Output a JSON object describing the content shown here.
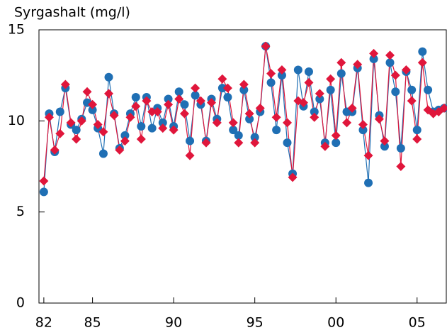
{
  "chart_data": {
    "type": "line",
    "title": "Syrgashalt (mg/l)",
    "x": [
      1982,
      1982.33,
      1982.67,
      1983,
      1983.33,
      1983.67,
      1984,
      1984.33,
      1984.67,
      1985,
      1985.33,
      1985.67,
      1986,
      1986.33,
      1986.67,
      1987,
      1987.33,
      1987.67,
      1988,
      1988.33,
      1988.67,
      1989,
      1989.33,
      1989.67,
      1990,
      1990.33,
      1990.67,
      1991,
      1991.33,
      1991.67,
      1992,
      1992.33,
      1992.67,
      1993,
      1993.33,
      1993.67,
      1994,
      1994.33,
      1994.67,
      1995,
      1995.33,
      1995.67,
      1996,
      1996.33,
      1996.67,
      1997,
      1997.33,
      1997.67,
      1998,
      1998.33,
      1998.67,
      1999,
      1999.33,
      1999.67,
      2000,
      2000.33,
      2000.67,
      2001,
      2001.33,
      2001.67,
      2002,
      2002.33,
      2002.67,
      2003,
      2003.33,
      2003.67,
      2004,
      2004.33,
      2004.67,
      2005,
      2005.33,
      2005.67,
      2006,
      2006.33,
      2006.67
    ],
    "series": [
      {
        "color": "#1f6fb4",
        "marker": "circle",
        "values": [
          6.1,
          10.4,
          8.3,
          10.5,
          11.8,
          9.8,
          9.5,
          10.1,
          11.0,
          10.6,
          9.6,
          8.2,
          12.4,
          10.4,
          8.5,
          9.2,
          10.4,
          11.3,
          9.7,
          11.3,
          9.6,
          10.7,
          9.9,
          11.2,
          9.7,
          11.6,
          10.9,
          8.9,
          11.4,
          10.9,
          8.9,
          11.2,
          10.1,
          11.8,
          11.3,
          9.5,
          9.2,
          11.7,
          10.1,
          9.1,
          10.5,
          14.1,
          12.1,
          9.5,
          12.5,
          8.8,
          7.1,
          12.8,
          10.8,
          12.7,
          10.5,
          11.2,
          8.8,
          11.7,
          8.8,
          12.6,
          10.5,
          10.5,
          12.9,
          9.5,
          6.6,
          13.4,
          10.3,
          8.6,
          13.2,
          11.6,
          8.5,
          12.7,
          11.7,
          9.5,
          13.8,
          11.7,
          10.5,
          10.6,
          10.7
        ]
      },
      {
        "color": "#e0163b",
        "marker": "diamond",
        "values": [
          6.7,
          10.2,
          8.4,
          9.3,
          12.0,
          9.9,
          9.0,
          10.0,
          11.6,
          10.9,
          9.8,
          9.4,
          11.5,
          10.3,
          8.4,
          8.9,
          10.2,
          10.8,
          9.0,
          11.1,
          10.5,
          10.5,
          9.6,
          10.9,
          9.5,
          11.2,
          10.4,
          8.1,
          11.8,
          11.1,
          8.8,
          11.0,
          9.9,
          12.3,
          11.8,
          9.9,
          8.8,
          12.0,
          10.4,
          8.8,
          10.7,
          14.1,
          12.6,
          10.2,
          12.8,
          9.9,
          6.9,
          11.1,
          11.0,
          12.1,
          10.2,
          11.5,
          8.6,
          12.3,
          9.2,
          13.2,
          9.9,
          10.7,
          13.1,
          9.8,
          8.1,
          13.7,
          10.1,
          8.9,
          13.6,
          12.5,
          7.5,
          12.8,
          11.1,
          9.0,
          13.2,
          10.6,
          10.4,
          10.5,
          10.7
        ]
      }
    ],
    "xlim": [
      1981.7,
      2006.8
    ],
    "xticks": [
      {
        "value": 1982,
        "label": "82"
      },
      {
        "value": 1985,
        "label": "85"
      },
      {
        "value": 1990,
        "label": "90"
      },
      {
        "value": 1995,
        "label": "95"
      },
      {
        "value": 2000,
        "label": "00"
      },
      {
        "value": 2005,
        "label": "05"
      }
    ],
    "ylim": [
      0,
      15
    ],
    "yticks": [
      0,
      5,
      10,
      15
    ]
  }
}
